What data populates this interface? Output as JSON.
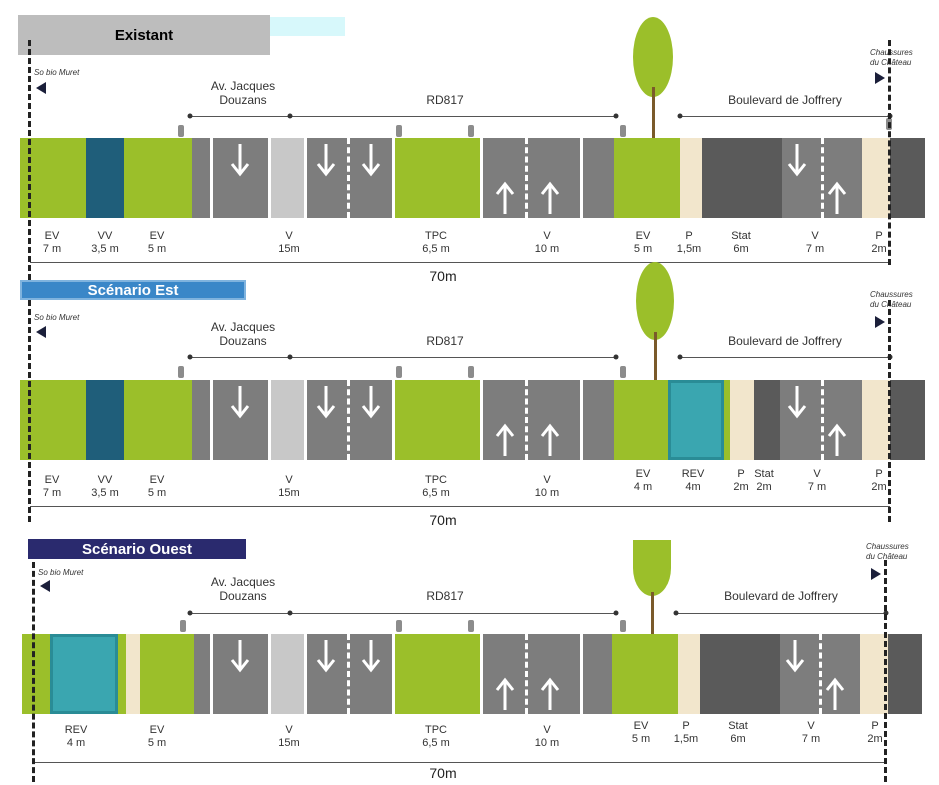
{
  "scenarios": [
    {
      "title": "Existant"
    },
    {
      "title": "Scénario Est"
    },
    {
      "title": "Scénario Ouest"
    }
  ],
  "left_landmark": "So bio Muret",
  "right_landmark": [
    "Chaussures",
    "du Château"
  ],
  "streets": {
    "a": "Av. Jacques",
    "b": "Douzans",
    "rd": "RD817",
    "boulevard": "Boulevard de Joffrery"
  },
  "total": "70m",
  "labels": {
    "existant": [
      {
        "t": "EV",
        "d": "7 m"
      },
      {
        "t": "VV",
        "d": "3,5 m"
      },
      {
        "t": "EV",
        "d": "5 m"
      },
      {
        "t": "V",
        "d": "15m"
      },
      {
        "t": "TPC",
        "d": "6,5 m"
      },
      {
        "t": "V",
        "d": "10 m"
      },
      {
        "t": "EV",
        "d": "5 m"
      },
      {
        "t": "P",
        "d": "1,5m"
      },
      {
        "t": "Stat",
        "d": "6m"
      },
      {
        "t": "V",
        "d": "7 m"
      },
      {
        "t": "P",
        "d": "2m"
      }
    ],
    "est": [
      {
        "t": "EV",
        "d": "7 m"
      },
      {
        "t": "VV",
        "d": "3,5 m"
      },
      {
        "t": "EV",
        "d": "5 m"
      },
      {
        "t": "V",
        "d": "15m"
      },
      {
        "t": "TPC",
        "d": "6,5 m"
      },
      {
        "t": "V",
        "d": "10 m"
      },
      {
        "t": "EV",
        "d": "4 m"
      },
      {
        "t": "REV",
        "d": "4m"
      },
      {
        "t": "P",
        "d": "2m"
      },
      {
        "t": "Stat",
        "d": "2m"
      },
      {
        "t": "V",
        "d": "7 m"
      },
      {
        "t": "P",
        "d": "2m"
      }
    ],
    "ouest": [
      {
        "t": "REV",
        "d": "4 m"
      },
      {
        "t": "EV",
        "d": "5 m"
      },
      {
        "t": "V",
        "d": "15m"
      },
      {
        "t": "TPC",
        "d": "6,5 m"
      },
      {
        "t": "V",
        "d": "10 m"
      },
      {
        "t": "EV",
        "d": "5 m"
      },
      {
        "t": "P",
        "d": "1,5m"
      },
      {
        "t": "Stat",
        "d": "6m"
      },
      {
        "t": "V",
        "d": "7 m"
      },
      {
        "t": "P",
        "d": "2m"
      }
    ]
  },
  "colors": {
    "green": "#9bbf2a",
    "blue": "#1f5e7a",
    "teal": "#3aa6b0",
    "road": "#7d7d7d",
    "road_dark": "#5a5a5a",
    "light_gray": "#c8c8c8",
    "beige": "#f2e6cc",
    "badge_existant": "#bdbdbd",
    "badge_est": "#3a87c8",
    "badge_ouest": "#2a2a6e"
  }
}
